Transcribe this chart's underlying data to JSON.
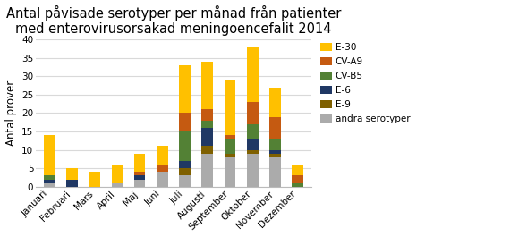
{
  "title": "Antal påvisade serotyper per månad från patienter\nmed enterovirusorsakad meningoencefalit 2014",
  "ylabel": "Antal prover",
  "months": [
    "Januari",
    "Februari",
    "Mars",
    "April",
    "Maj",
    "Juni",
    "Juli",
    "Augusti",
    "September",
    "Oktober",
    "November",
    "Dezember"
  ],
  "series": {
    "andra serotyper": [
      1,
      0,
      0,
      1,
      2,
      4,
      3,
      9,
      8,
      9,
      8,
      0
    ],
    "E-9": [
      0,
      0,
      0,
      0,
      0,
      0,
      2,
      2,
      1,
      1,
      1,
      0
    ],
    "E-6": [
      1,
      2,
      0,
      0,
      1,
      0,
      2,
      5,
      0,
      3,
      1,
      0
    ],
    "CV-B5": [
      1,
      0,
      0,
      0,
      0,
      0,
      8,
      2,
      4,
      4,
      3,
      1
    ],
    "CV-A9": [
      0,
      0,
      0,
      0,
      1,
      2,
      5,
      3,
      1,
      6,
      6,
      2
    ],
    "E-30": [
      11,
      3,
      4,
      5,
      5,
      5,
      13,
      13,
      15,
      15,
      8,
      3
    ]
  },
  "colors": {
    "andra serotyper": "#ababab",
    "E-9": "#7f6000",
    "E-6": "#203864",
    "CV-B5": "#538135",
    "CV-A9": "#c55a11",
    "E-30": "#ffc000"
  },
  "ylim": [
    0,
    40
  ],
  "yticks": [
    0,
    5,
    10,
    15,
    20,
    25,
    30,
    35,
    40
  ],
  "background_color": "#ffffff",
  "grid_color": "#d9d9d9",
  "title_fontsize": 10.5,
  "legend_fontsize": 7.5,
  "axis_fontsize": 8.5,
  "tick_fontsize": 7.5,
  "bar_width": 0.5
}
